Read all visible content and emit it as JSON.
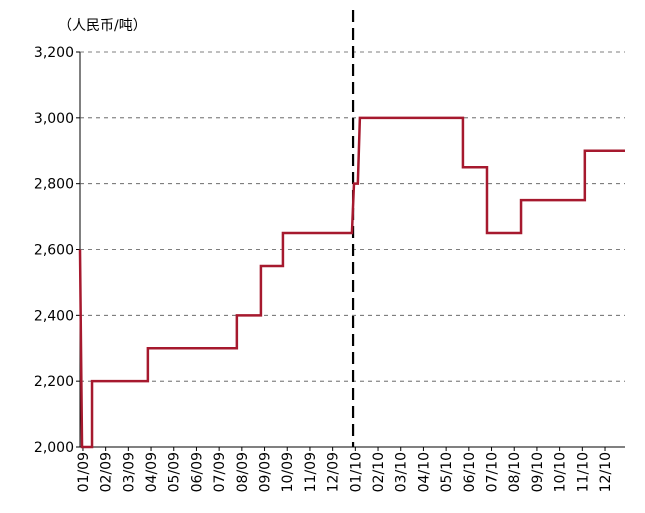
{
  "chart_data": {
    "type": "line",
    "y_axis_label": "（人民币/吨）",
    "x": [
      -0.13,
      -0.04,
      0.4,
      0.4,
      2.86,
      2.86,
      6.78,
      6.78,
      7.84,
      7.84,
      8.81,
      8.81,
      11.85,
      11.94,
      12.11,
      12.2,
      16.74,
      16.74,
      17.8,
      17.8,
      19.3,
      19.3,
      22.11,
      22.11,
      23.88
    ],
    "series": [
      {
        "color": "#a6192e",
        "values": [
          2600,
          2000,
          2000,
          2200,
          2200,
          2300,
          2300,
          2400,
          2400,
          2550,
          2550,
          2650,
          2650,
          2800,
          2800,
          3000,
          3000,
          2850,
          2850,
          2650,
          2650,
          2750,
          2750,
          2900,
          2900
        ]
      }
    ],
    "xlim": [
      -0.13,
      23.88
    ],
    "xticks": [
      {
        "value": 0,
        "label": "01/09"
      },
      {
        "value": 1,
        "label": "02/09"
      },
      {
        "value": 2,
        "label": "03/09"
      },
      {
        "value": 3,
        "label": "04/09"
      },
      {
        "value": 4,
        "label": "05/09"
      },
      {
        "value": 5,
        "label": "06/09"
      },
      {
        "value": 6,
        "label": "07/09"
      },
      {
        "value": 7,
        "label": "08/09"
      },
      {
        "value": 8,
        "label": "09/09"
      },
      {
        "value": 9,
        "label": "10/09"
      },
      {
        "value": 10,
        "label": "11/09"
      },
      {
        "value": 11,
        "label": "12/09"
      },
      {
        "value": 12,
        "label": "01/10"
      },
      {
        "value": 13,
        "label": "02/10"
      },
      {
        "value": 14,
        "label": "03/10"
      },
      {
        "value": 15,
        "label": "04/10"
      },
      {
        "value": 16,
        "label": "05/10"
      },
      {
        "value": 17,
        "label": "06/10"
      },
      {
        "value": 18,
        "label": "07/10"
      },
      {
        "value": 19,
        "label": "08/10"
      },
      {
        "value": 20,
        "label": "09/10"
      },
      {
        "value": 21,
        "label": "10/10"
      },
      {
        "value": 22,
        "label": "11/10"
      },
      {
        "value": 23,
        "label": "12/10"
      }
    ],
    "ylim": [
      2000,
      3200
    ],
    "yticks": [
      {
        "value": 2000,
        "label": "2,000"
      },
      {
        "value": 2200,
        "label": "2,200"
      },
      {
        "value": 2400,
        "label": "2,400"
      },
      {
        "value": 2600,
        "label": "2,600"
      },
      {
        "value": 2800,
        "label": "2,800"
      },
      {
        "value": 3000,
        "label": "3,000"
      },
      {
        "value": 3200,
        "label": "3,200"
      }
    ],
    "grid": true,
    "vline_x": 11.9
  }
}
